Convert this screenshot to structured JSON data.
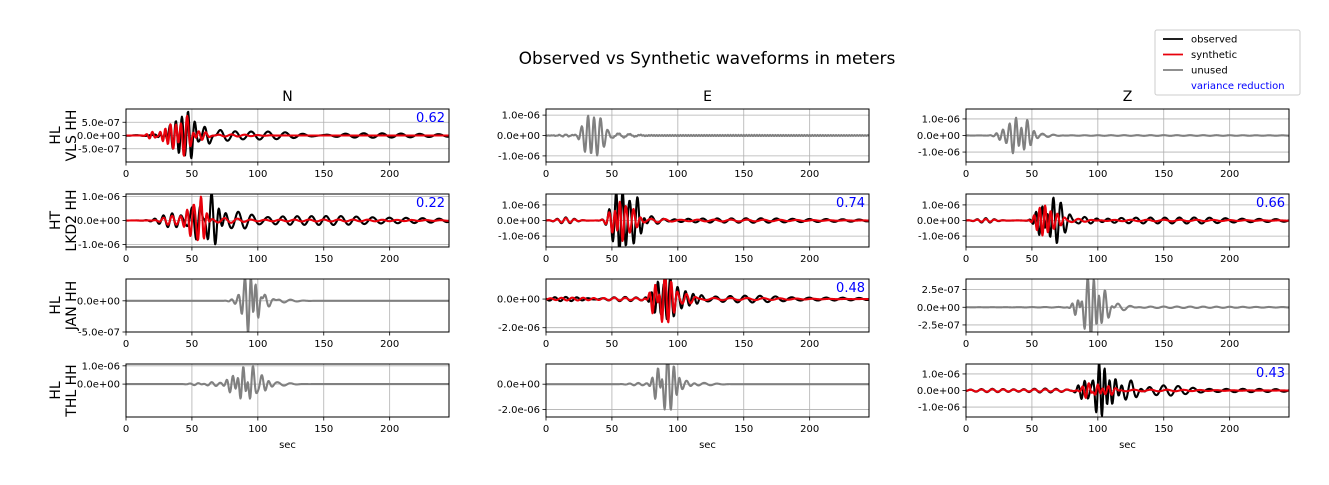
{
  "chart_data": {
    "type": "line",
    "title": "Observed vs Synthetic waveforms in meters",
    "xlabel": "sec",
    "xlim": [
      0,
      245
    ],
    "xticks": [
      0,
      50,
      100,
      150,
      200
    ],
    "grid": true,
    "column_titles": [
      "N",
      "E",
      "Z"
    ],
    "row_labels": [
      [
        "HL",
        "VLS HH"
      ],
      [
        "HT",
        "LKD2 HH"
      ],
      [
        "HL",
        "JAN HH"
      ],
      [
        "HL",
        "THL HH"
      ]
    ],
    "legend": {
      "placement": "top-right",
      "entries": [
        {
          "label": "observed",
          "color": "#000000"
        },
        {
          "label": "synthetic",
          "color": "#e8000b"
        },
        {
          "label": "unused",
          "color": "#808080"
        },
        {
          "label": "variance reduction",
          "color": "#0000ff"
        }
      ]
    },
    "colors": {
      "observed": "#000000",
      "synthetic": "#e8000b",
      "unused": "#808080",
      "vr": "#0000ff"
    },
    "panels": [
      {
        "row": 0,
        "col": 0,
        "used": true,
        "vr": "0.62",
        "ylim": [
          -1e-06,
          1e-06
        ],
        "yticks": [
          5e-07,
          0,
          -5e-07
        ],
        "ytick_labels": [
          "5.0e-07",
          "0.0e+00",
          "-5.0e-07"
        ],
        "obs_wavelets": [
          [
            30,
            1.5e-07,
            4,
            0.25,
            0
          ],
          [
            38,
            5e-07,
            5,
            0.2,
            0
          ],
          [
            47,
            8e-07,
            5,
            0.2,
            0
          ],
          [
            58,
            -3e-07,
            6,
            0.15,
            1.5
          ],
          [
            72,
            1.5e-07,
            8,
            0.08,
            0
          ],
          [
            95,
            1.2e-07,
            40,
            0.08,
            0
          ],
          [
            180,
            8e-08,
            60,
            0.07,
            0
          ]
        ],
        "syn_wavelets": [
          [
            20,
            1.5e-07,
            3,
            0.22,
            0
          ],
          [
            30,
            2.5e-07,
            4,
            0.25,
            0
          ],
          [
            38,
            5.5e-07,
            4,
            0.22,
            0
          ],
          [
            45,
            -8e-07,
            4,
            0.18,
            1.57
          ],
          [
            55,
            2e-07,
            5,
            0.18,
            0
          ],
          [
            80,
            4e-08,
            15,
            0.1,
            0
          ]
        ]
      },
      {
        "row": 0,
        "col": 1,
        "used": false,
        "vr": "",
        "ylim": [
          -1.3e-06,
          1.3e-06
        ],
        "yticks": [
          1e-06,
          0,
          -1e-06
        ],
        "ytick_labels": [
          "1.0e-06",
          "0.0e+00",
          "-1.0e-06"
        ],
        "unused_wavelets": [
          [
            15,
            5e-08,
            5,
            0.2,
            0
          ],
          [
            32,
            1e-06,
            4,
            0.2,
            0
          ],
          [
            40,
            -9e-07,
            4,
            0.18,
            1.57
          ],
          [
            55,
            1e-07,
            10,
            0.12,
            0
          ],
          [
            150,
            3e-08,
            90,
            0.5,
            0
          ]
        ]
      },
      {
        "row": 0,
        "col": 2,
        "used": false,
        "vr": "",
        "ylim": [
          -1.6e-06,
          1.6e-06
        ],
        "yticks": [
          1e-06,
          0,
          -1e-06
        ],
        "ytick_labels": [
          "1.0e-06",
          "0.0e+00",
          "-1.0e-06"
        ],
        "unused_wavelets": [
          [
            28,
            3e-07,
            4,
            0.2,
            0
          ],
          [
            38,
            1.3e-06,
            4,
            0.2,
            0
          ],
          [
            45,
            -1.1e-06,
            4,
            0.18,
            1.57
          ],
          [
            58,
            1e-07,
            8,
            0.12,
            0
          ],
          [
            150,
            2e-08,
            80,
            0.1,
            0
          ]
        ]
      },
      {
        "row": 1,
        "col": 0,
        "used": true,
        "vr": "0.22",
        "ylim": [
          -1.1e-06,
          1.1e-06
        ],
        "yticks": [
          1e-06,
          0,
          -1e-06
        ],
        "ytick_labels": [
          "1.0e-06",
          "0.0e+00",
          "-1.0e-06"
        ],
        "obs_wavelets": [
          [
            35,
            3e-07,
            8,
            0.15,
            0
          ],
          [
            55,
            -9e-07,
            5,
            0.15,
            1.57
          ],
          [
            65,
            1.1e-06,
            5,
            0.18,
            0
          ],
          [
            85,
            3e-07,
            10,
            0.1,
            0
          ],
          [
            130,
            2e-07,
            30,
            0.09,
            0
          ],
          [
            200,
            1.2e-07,
            40,
            0.08,
            0
          ]
        ],
        "syn_wavelets": [
          [
            35,
            2e-07,
            6,
            0.15,
            0
          ],
          [
            50,
            -7e-07,
            4,
            0.2,
            1.57
          ],
          [
            57,
            9e-07,
            3,
            0.22,
            0
          ],
          [
            75,
            1e-07,
            10,
            0.1,
            0
          ],
          [
            150,
            4e-08,
            60,
            0.09,
            0
          ]
        ]
      },
      {
        "row": 1,
        "col": 1,
        "used": true,
        "vr": "0.74",
        "ylim": [
          -1.7e-06,
          1.7e-06
        ],
        "yticks": [
          1e-06,
          0,
          -1e-06
        ],
        "ytick_labels": [
          "1.0e-06",
          "0.0e+00",
          "-1.0e-06"
        ],
        "obs_wavelets": [
          [
            15,
            2e-07,
            6,
            0.15,
            0
          ],
          [
            52,
            -1.1e-06,
            4,
            0.18,
            1.57
          ],
          [
            58,
            1.7e-06,
            4,
            0.2,
            0
          ],
          [
            68,
            -1.5e-06,
            4,
            0.18,
            1.57
          ],
          [
            80,
            3e-07,
            8,
            0.1,
            0
          ],
          [
            130,
            1.5e-07,
            30,
            0.09,
            0
          ],
          [
            200,
            1e-07,
            40,
            0.08,
            0
          ]
        ],
        "syn_wavelets": [
          [
            15,
            1.5e-07,
            6,
            0.15,
            0
          ],
          [
            52,
            -9e-07,
            4,
            0.18,
            1.57
          ],
          [
            56,
            1.7e-06,
            3,
            0.22,
            0
          ],
          [
            65,
            -8e-07,
            4,
            0.18,
            1.57
          ],
          [
            80,
            1e-07,
            10,
            0.1,
            0
          ],
          [
            140,
            6e-08,
            50,
            0.08,
            0
          ]
        ]
      },
      {
        "row": 1,
        "col": 2,
        "used": true,
        "vr": "0.66",
        "ylim": [
          -1.7e-06,
          1.7e-06
        ],
        "yticks": [
          1e-06,
          0,
          -1e-06
        ],
        "ytick_labels": [
          "1.0e-06",
          "0.0e+00",
          "-1.0e-06"
        ],
        "obs_wavelets": [
          [
            15,
            1.5e-07,
            6,
            0.15,
            0
          ],
          [
            58,
            1.2e-06,
            4,
            0.2,
            0
          ],
          [
            65,
            -1.4e-06,
            4,
            0.18,
            1.57
          ],
          [
            72,
            8e-07,
            5,
            0.15,
            0
          ],
          [
            90,
            3e-07,
            10,
            0.1,
            0
          ],
          [
            140,
            2e-07,
            35,
            0.09,
            0
          ],
          [
            210,
            1.2e-07,
            35,
            0.08,
            0
          ]
        ],
        "syn_wavelets": [
          [
            15,
            1e-07,
            6,
            0.15,
            0
          ],
          [
            55,
            -6e-07,
            3,
            0.22,
            1.57
          ],
          [
            60,
            9e-07,
            3,
            0.22,
            0
          ],
          [
            68,
            -5e-07,
            4,
            0.18,
            1.57
          ],
          [
            85,
            1e-07,
            10,
            0.1,
            0
          ],
          [
            150,
            5e-08,
            50,
            0.08,
            0
          ]
        ]
      },
      {
        "row": 2,
        "col": 0,
        "used": false,
        "vr": "",
        "ylim": [
          -5e-07,
          3.5e-07
        ],
        "yticks": [
          0,
          -5e-07
        ],
        "ytick_labels": [
          "0.0e+00",
          "-5.0e-07"
        ],
        "unused_wavelets": [
          [
            85,
            5e-08,
            4,
            0.2,
            0
          ],
          [
            90,
            1.5e-07,
            3,
            0.22,
            0
          ],
          [
            94,
            -5e-07,
            3,
            0.2,
            1.57
          ],
          [
            98,
            4e-07,
            3,
            0.22,
            0
          ],
          [
            105,
            1e-07,
            5,
            0.15,
            0
          ],
          [
            115,
            3e-08,
            10,
            0.1,
            0
          ]
        ]
      },
      {
        "row": 2,
        "col": 1,
        "used": true,
        "vr": "0.48",
        "ylim": [
          -2.3e-06,
          1.4e-06
        ],
        "yticks": [
          0,
          -2e-06
        ],
        "ytick_labels": [
          "0.0e+00",
          "-2.0e-06"
        ],
        "obs_wavelets": [
          [
            15,
            1.5e-07,
            15,
            0.12,
            0
          ],
          [
            60,
            1.5e-07,
            15,
            0.12,
            0
          ],
          [
            85,
            1.2e-06,
            4,
            0.2,
            0
          ],
          [
            93,
            -1.3e-06,
            4,
            0.18,
            1.57
          ],
          [
            100,
            6e-07,
            5,
            0.15,
            0
          ],
          [
            110,
            -5e-07,
            5,
            0.15,
            1.57
          ],
          [
            140,
            2e-07,
            30,
            0.09,
            0
          ],
          [
            200,
            1.2e-07,
            40,
            0.08,
            0
          ]
        ],
        "syn_wavelets": [
          [
            20,
            1e-07,
            15,
            0.12,
            0
          ],
          [
            60,
            1e-07,
            15,
            0.12,
            0
          ],
          [
            83,
            1.3e-06,
            3,
            0.22,
            0
          ],
          [
            89,
            -2e-06,
            3,
            0.2,
            1.57
          ],
          [
            95,
            1e-06,
            3,
            0.22,
            0
          ],
          [
            105,
            -4e-07,
            5,
            0.15,
            1.57
          ],
          [
            140,
            8e-08,
            40,
            0.08,
            0
          ]
        ]
      },
      {
        "row": 2,
        "col": 2,
        "used": false,
        "vr": "",
        "ylim": [
          -3.5e-07,
          4e-07
        ],
        "yticks": [
          2.5e-07,
          0,
          -2.5e-07
        ],
        "ytick_labels": [
          "2.5e-07",
          "0.0e+00",
          "-2.5e-07"
        ],
        "unused_wavelets": [
          [
            85,
            1.5e-07,
            3,
            0.22,
            0
          ],
          [
            91,
            -3.5e-07,
            3,
            0.2,
            1.57
          ],
          [
            97,
            4e-07,
            3,
            0.22,
            0
          ],
          [
            104,
            -2.3e-07,
            4,
            0.18,
            1.57
          ],
          [
            115,
            6e-08,
            8,
            0.1,
            0
          ],
          [
            150,
            1e-08,
            60,
            0.1,
            0
          ]
        ]
      },
      {
        "row": 3,
        "col": 0,
        "used": false,
        "vr": "",
        "ylim": [
          -1.8e-06,
          1.1e-06
        ],
        "yticks": [
          1e-06,
          0
        ],
        "ytick_labels": [
          "1.0e-06",
          "0.0e+00"
        ],
        "unused_wavelets": [
          [
            55,
            8e-08,
            5,
            0.15,
            0
          ],
          [
            65,
            1.2e-07,
            6,
            0.15,
            0
          ],
          [
            80,
            -5e-07,
            3,
            0.2,
            1.57
          ],
          [
            89,
            1.1e-06,
            3,
            0.22,
            0
          ],
          [
            95,
            -1.1e-06,
            3,
            0.2,
            1.57
          ],
          [
            103,
            5e-07,
            4,
            0.18,
            0
          ],
          [
            115,
            1e-07,
            8,
            0.1,
            0
          ]
        ]
      },
      {
        "row": 3,
        "col": 1,
        "used": false,
        "vr": "",
        "ylim": [
          -2.6e-06,
          1.6e-06
        ],
        "yticks": [
          0,
          -2e-06
        ],
        "ytick_labels": [
          "0.0e+00",
          "-2.0e-06"
        ],
        "unused_wavelets": [
          [
            70,
            1e-07,
            6,
            0.15,
            0
          ],
          [
            85,
            1.6e-06,
            3,
            0.22,
            0
          ],
          [
            91,
            -2.5e-06,
            3,
            0.2,
            1.57
          ],
          [
            97,
            1.2e-06,
            3,
            0.22,
            0
          ],
          [
            105,
            -3e-07,
            5,
            0.15,
            1.57
          ],
          [
            120,
            1e-07,
            8,
            0.1,
            0
          ]
        ]
      },
      {
        "row": 3,
        "col": 2,
        "used": true,
        "vr": "0.43",
        "ylim": [
          -1.6e-06,
          1.6e-06
        ],
        "yticks": [
          1e-06,
          0,
          -1e-06
        ],
        "ytick_labels": [
          "1.0e-06",
          "0.0e+00",
          "-1.0e-06"
        ],
        "obs_wavelets": [
          [
            20,
            1e-07,
            15,
            0.12,
            0
          ],
          [
            60,
            1.2e-07,
            15,
            0.12,
            0
          ],
          [
            90,
            6e-07,
            4,
            0.2,
            0
          ],
          [
            100,
            -1.3e-06,
            3,
            0.2,
            1.57
          ],
          [
            105,
            1.5e-06,
            3,
            0.22,
            0
          ],
          [
            112,
            -8e-07,
            4,
            0.18,
            1.57
          ],
          [
            125,
            6e-07,
            6,
            0.12,
            0
          ],
          [
            150,
            3e-07,
            15,
            0.09,
            0
          ],
          [
            210,
            1e-07,
            40,
            0.08,
            0
          ]
        ],
        "syn_wavelets": [
          [
            20,
            8e-08,
            15,
            0.12,
            0
          ],
          [
            60,
            8e-08,
            15,
            0.12,
            0
          ],
          [
            92,
            -5e-07,
            3,
            0.2,
            1.57
          ],
          [
            100,
            4e-07,
            3,
            0.22,
            0
          ],
          [
            108,
            3e-07,
            4,
            0.18,
            0
          ],
          [
            140,
            5e-08,
            40,
            0.08,
            0
          ]
        ]
      }
    ]
  }
}
